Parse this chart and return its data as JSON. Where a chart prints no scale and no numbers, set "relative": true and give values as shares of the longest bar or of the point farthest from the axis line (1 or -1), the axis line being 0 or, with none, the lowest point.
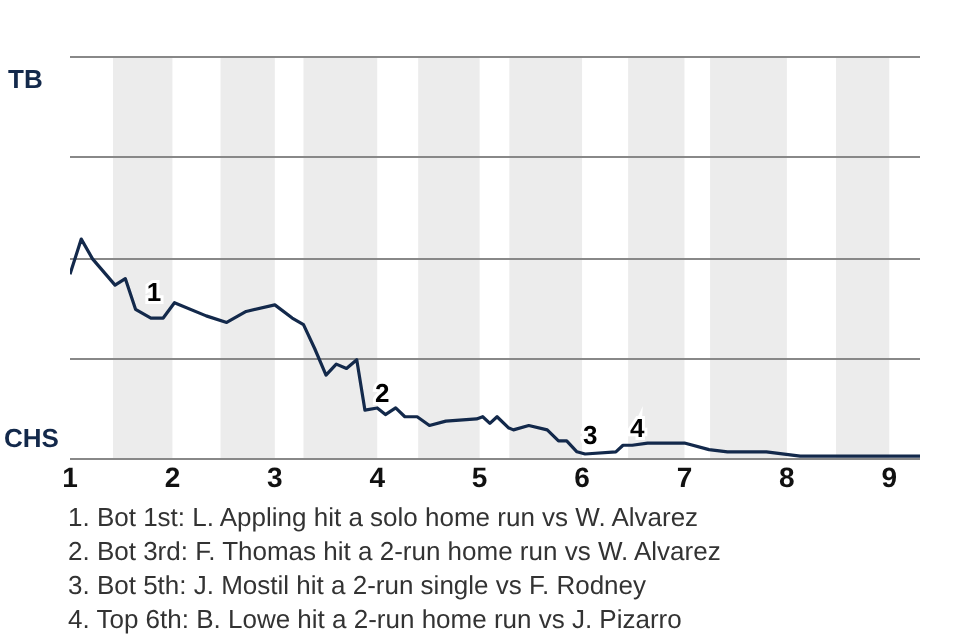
{
  "chart_data": {
    "type": "line",
    "relative": true,
    "x": [
      1.0,
      1.11,
      1.22,
      1.44,
      1.54,
      1.64,
      1.79,
      1.91,
      2.02,
      2.33,
      2.53,
      2.72,
      3.0,
      3.17,
      3.28,
      3.39,
      3.5,
      3.6,
      3.7,
      3.8,
      3.88,
      4.0,
      4.08,
      4.18,
      4.27,
      4.39,
      4.51,
      4.67,
      4.97,
      5.03,
      5.1,
      5.17,
      5.28,
      5.33,
      5.48,
      5.66,
      5.77,
      5.85,
      5.95,
      6.03,
      6.33,
      6.4,
      6.49,
      6.64,
      7.0,
      7.24,
      7.42,
      7.8,
      8.13,
      9.3
    ],
    "series": [
      {
        "color": "#13294b",
        "values": [
          0.84,
          1,
          0.91,
          0.79,
          0.82,
          0.68,
          0.64,
          0.64,
          0.71,
          0.65,
          0.62,
          0.67,
          0.7,
          0.64,
          0.61,
          0.5,
          0.38,
          0.43,
          0.41,
          0.45,
          0.22,
          0.23,
          0.2,
          0.23,
          0.19,
          0.19,
          0.15,
          0.17,
          0.18,
          0.19,
          0.16,
          0.19,
          0.14,
          0.13,
          0.15,
          0.13,
          0.08,
          0.08,
          0.03,
          0.02,
          0.03,
          0.06,
          0.06,
          0.07,
          0.07,
          0.04,
          0.03,
          0.03,
          0.01,
          0.01
        ]
      }
    ],
    "xlim": [
      1,
      9.3
    ],
    "xticks": [
      1,
      2,
      3,
      4,
      5,
      6,
      7,
      8,
      9
    ],
    "legend": false,
    "ref_lines": [
      {
        "axis": "y",
        "value": 0,
        "color": "#888888"
      },
      {
        "axis": "y",
        "value": 0.459,
        "color": "#888888"
      },
      {
        "axis": "y",
        "value": 0.917,
        "color": "#888888"
      },
      {
        "axis": "y",
        "value": 1.376,
        "color": "#888888"
      },
      {
        "axis": "y",
        "value": 1.835,
        "color": "#888888"
      }
    ],
    "marker": "none",
    "line_style": "solid",
    "bands": [
      {
        "axis": "x",
        "from": 1.42,
        "to": 2.0,
        "color": "#ececec"
      },
      {
        "axis": "x",
        "from": 2.47,
        "to": 3.0,
        "color": "#ececec"
      },
      {
        "axis": "x",
        "from": 3.28,
        "to": 4.0,
        "color": "#ececec"
      },
      {
        "axis": "x",
        "from": 4.4,
        "to": 5.0,
        "color": "#ececec"
      },
      {
        "axis": "x",
        "from": 5.29,
        "to": 6.0,
        "color": "#ececec"
      },
      {
        "axis": "x",
        "from": 6.45,
        "to": 7.0,
        "color": "#ececec"
      },
      {
        "axis": "x",
        "from": 7.25,
        "to": 8.0,
        "color": "#ececec"
      },
      {
        "axis": "x",
        "from": 8.48,
        "to": 9.0,
        "color": "#ececec"
      }
    ],
    "annotations": [
      "TB",
      "CHS",
      {
        "text": "1",
        "x": 1.71,
        "y": 0.68
      },
      {
        "text": "2",
        "x": 3.94,
        "y": 0.22
      },
      {
        "text": "3",
        "x": 5.97,
        "y": 0.03
      },
      {
        "text": "4",
        "x": 6.43,
        "y": 0.06
      },
      "1. Bot 1st: L. Appling hit a solo home run vs W. Alvarez",
      "2. Bot 3rd: F. Thomas hit a 2-run home run vs W. Alvarez",
      "3. Bot 5th: J. Mostil hit a 2-run single vs F. Rodney",
      "4. Top 6th: B. Lowe hit a 2-run home run vs J. Pizarro"
    ]
  }
}
